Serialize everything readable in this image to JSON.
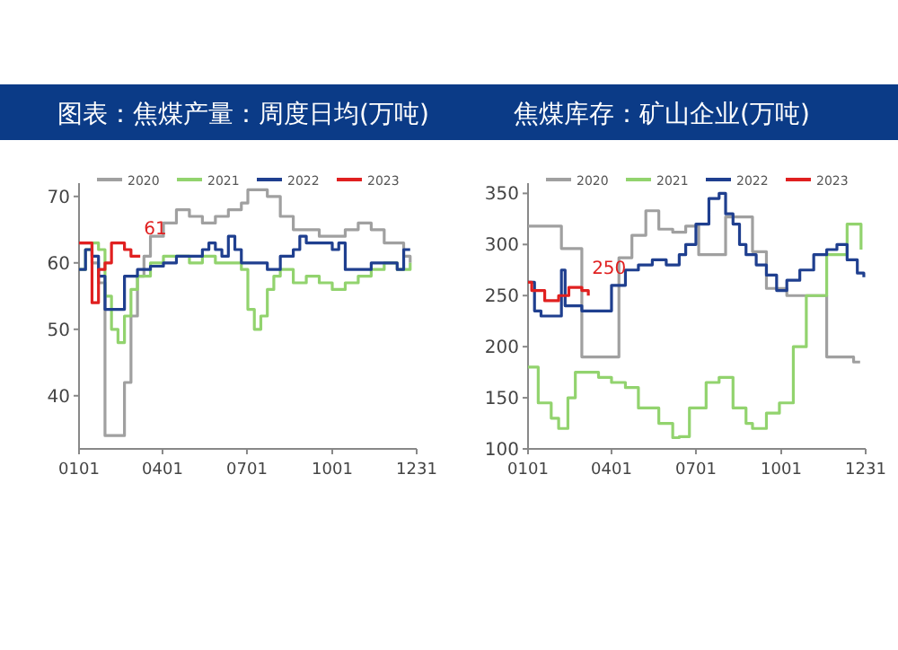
{
  "chart_data": [
    {
      "type": "step",
      "title": "图表：焦煤产量：周度日均(万吨)",
      "xlim": [
        "--01-01",
        "--12-31"
      ],
      "ylim": [
        32,
        72
      ],
      "yticks": [
        40,
        50,
        60,
        70
      ],
      "xticks": [
        {
          "value": "--01-01",
          "label": "0101"
        },
        {
          "value": "--04-01",
          "label": "0401"
        },
        {
          "value": "--07-01",
          "label": "0701"
        },
        {
          "value": "--10-01",
          "label": "1001"
        },
        {
          "value": "--12-31",
          "label": "1231"
        }
      ],
      "legend": "top",
      "grid": false,
      "annotations": [
        {
          "text": "61",
          "x": "--03-08",
          "y": 61
        }
      ],
      "series": [
        {
          "name": "2020",
          "color": "#a0a0a0",
          "x": [
            "--01-01",
            "--01-08",
            "--01-15",
            "--01-22",
            "--01-29",
            "--02-05",
            "--02-12",
            "--02-19",
            "--02-26",
            "--03-05",
            "--03-12",
            "--03-19",
            "--04-02",
            "--04-16",
            "--04-30",
            "--05-14",
            "--05-28",
            "--06-11",
            "--06-25",
            "--07-02",
            "--07-09",
            "--07-23",
            "--08-06",
            "--08-20",
            "--09-03",
            "--09-17",
            "--10-01",
            "--10-15",
            "--10-29",
            "--11-12",
            "--11-26",
            "--12-10",
            "--12-17",
            "--12-24"
          ],
          "values": [
            63,
            63,
            60,
            57,
            34,
            34,
            34,
            42,
            52,
            58,
            61,
            64,
            66,
            68,
            67,
            66,
            67,
            68,
            69,
            71,
            71,
            70,
            67,
            65,
            65,
            64,
            64,
            65,
            66,
            65,
            63,
            63,
            61,
            60
          ]
        },
        {
          "name": "2021",
          "color": "#92d36e",
          "x": [
            "--01-01",
            "--01-08",
            "--01-15",
            "--01-22",
            "--01-29",
            "--02-05",
            "--02-12",
            "--02-19",
            "--02-26",
            "--03-05",
            "--03-19",
            "--04-02",
            "--04-16",
            "--04-30",
            "--05-14",
            "--05-28",
            "--06-11",
            "--06-25",
            "--07-02",
            "--07-09",
            "--07-16",
            "--07-23",
            "--07-30",
            "--08-06",
            "--08-20",
            "--09-03",
            "--09-17",
            "--10-01",
            "--10-15",
            "--10-29",
            "--11-12",
            "--11-26",
            "--12-10",
            "--12-24"
          ],
          "values": [
            59,
            62,
            63,
            62,
            55,
            50,
            48,
            52,
            56,
            58,
            60,
            61,
            61,
            60,
            61,
            60,
            60,
            59,
            53,
            50,
            52,
            56,
            58,
            59,
            57,
            58,
            57,
            56,
            57,
            58,
            59,
            60,
            59,
            60
          ]
        },
        {
          "name": "2022",
          "color": "#1f3f8f",
          "x": [
            "--01-01",
            "--01-08",
            "--01-15",
            "--01-22",
            "--01-29",
            "--02-05",
            "--02-12",
            "--02-19",
            "--03-05",
            "--03-19",
            "--04-02",
            "--04-16",
            "--04-30",
            "--05-14",
            "--05-21",
            "--05-28",
            "--06-04",
            "--06-11",
            "--06-18",
            "--06-25",
            "--07-09",
            "--07-23",
            "--08-06",
            "--08-20",
            "--08-27",
            "--09-03",
            "--09-17",
            "--10-01",
            "--10-08",
            "--10-15",
            "--10-29",
            "--11-12",
            "--11-26",
            "--12-10",
            "--12-17",
            "--12-24"
          ],
          "values": [
            59,
            62,
            61,
            58,
            53,
            53,
            53,
            58,
            59,
            59.5,
            60,
            61,
            61,
            62,
            63,
            62,
            61,
            64,
            62,
            60,
            60,
            59,
            61,
            62,
            64,
            63,
            63,
            62,
            63,
            59,
            59,
            60,
            60,
            59,
            62,
            62
          ]
        },
        {
          "name": "2023",
          "color": "#e02020",
          "x": [
            "--01-01",
            "--01-08",
            "--01-15",
            "--01-22",
            "--01-29",
            "--02-05",
            "--02-12",
            "--02-19",
            "--02-26",
            "--03-08"
          ],
          "values": [
            63,
            63,
            54,
            59,
            60,
            63,
            63,
            62,
            61,
            61
          ]
        }
      ]
    },
    {
      "type": "step",
      "title": "焦煤库存：矿山企业(万吨)",
      "xlim": [
        "--01-01",
        "--12-31"
      ],
      "ylim": [
        100,
        360
      ],
      "yticks": [
        100,
        150,
        200,
        250,
        300,
        350
      ],
      "xticks": [
        {
          "value": "--01-01",
          "label": "0101"
        },
        {
          "value": "--04-01",
          "label": "0401"
        },
        {
          "value": "--07-01",
          "label": "0701"
        },
        {
          "value": "--10-01",
          "label": "1001"
        },
        {
          "value": "--12-31",
          "label": "1231"
        }
      ],
      "legend": "top",
      "grid": false,
      "annotations": [
        {
          "text": "250",
          "x": "--03-07",
          "y": 250
        }
      ],
      "series": [
        {
          "name": "2020",
          "color": "#a0a0a0",
          "x": [
            "--01-01",
            "--02-06",
            "--02-28",
            "--04-09",
            "--04-23",
            "--05-08",
            "--05-22",
            "--06-06",
            "--06-20",
            "--07-04",
            "--08-02",
            "--08-17",
            "--08-31",
            "--09-15",
            "--10-07",
            "--11-19",
            "--12-18",
            "--12-25"
          ],
          "values": [
            318,
            296,
            190,
            287,
            309,
            333,
            315,
            312,
            318,
            290,
            327,
            327,
            293,
            257,
            250,
            190,
            185,
            185
          ]
        },
        {
          "name": "2021",
          "color": "#92d36e",
          "x": [
            "--01-01",
            "--01-12",
            "--01-26",
            "--02-03",
            "--02-13",
            "--02-21",
            "--03-18",
            "--04-01",
            "--04-16",
            "--04-30",
            "--05-22",
            "--06-06",
            "--06-13",
            "--06-24",
            "--07-12",
            "--07-26",
            "--08-10",
            "--08-24",
            "--08-31",
            "--09-15",
            "--09-29",
            "--10-14",
            "--10-28",
            "--11-19",
            "--12-11",
            "--12-18",
            "--12-26"
          ],
          "values": [
            180,
            145,
            130,
            120,
            150,
            175,
            170,
            165,
            160,
            140,
            125,
            111,
            112,
            140,
            165,
            170,
            140,
            125,
            120,
            135,
            145,
            200,
            250,
            290,
            320,
            320,
            295
          ]
        },
        {
          "name": "2022",
          "color": "#1f3f8f",
          "x": [
            "--01-01",
            "--01-08",
            "--01-15",
            "--02-06",
            "--02-10",
            "--02-28",
            "--03-22",
            "--04-01",
            "--04-16",
            "--04-30",
            "--05-15",
            "--05-30",
            "--06-13",
            "--06-20",
            "--07-01",
            "--07-15",
            "--07-26",
            "--08-02",
            "--08-10",
            "--08-17",
            "--08-24",
            "--09-04",
            "--09-15",
            "--09-26",
            "--10-07",
            "--10-21",
            "--11-05",
            "--11-19",
            "--11-30",
            "--12-11",
            "--12-22",
            "--12-29"
          ],
          "values": [
            263,
            235,
            230,
            275,
            240,
            235,
            235,
            260,
            275,
            280,
            285,
            280,
            290,
            300,
            320,
            345,
            350,
            330,
            320,
            300,
            290,
            280,
            270,
            255,
            265,
            275,
            290,
            295,
            300,
            285,
            272,
            268
          ]
        },
        {
          "name": "2023",
          "color": "#e02020",
          "x": [
            "--01-01",
            "--01-05",
            "--01-19",
            "--02-03",
            "--02-14",
            "--02-28",
            "--03-07"
          ],
          "values": [
            263,
            255,
            245,
            250,
            258,
            255,
            250
          ]
        }
      ]
    }
  ]
}
